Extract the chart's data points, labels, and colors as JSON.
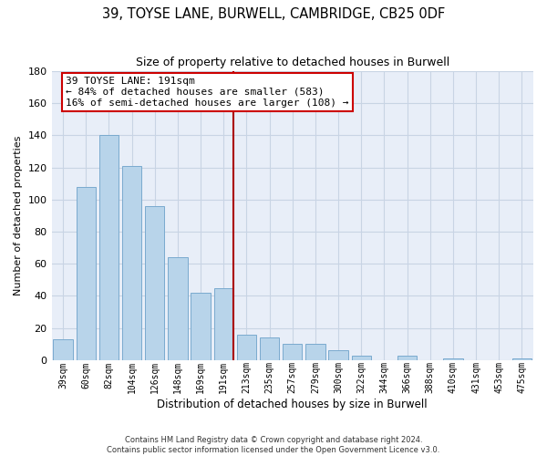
{
  "title": "39, TOYSE LANE, BURWELL, CAMBRIDGE, CB25 0DF",
  "subtitle": "Size of property relative to detached houses in Burwell",
  "xlabel": "Distribution of detached houses by size in Burwell",
  "ylabel": "Number of detached properties",
  "bar_labels": [
    "39sqm",
    "60sqm",
    "82sqm",
    "104sqm",
    "126sqm",
    "148sqm",
    "169sqm",
    "191sqm",
    "213sqm",
    "235sqm",
    "257sqm",
    "279sqm",
    "300sqm",
    "322sqm",
    "344sqm",
    "366sqm",
    "388sqm",
    "410sqm",
    "431sqm",
    "453sqm",
    "475sqm"
  ],
  "bar_values": [
    13,
    108,
    140,
    121,
    96,
    64,
    42,
    45,
    16,
    14,
    10,
    10,
    6,
    3,
    0,
    3,
    0,
    1,
    0,
    0,
    1
  ],
  "bar_color": "#b8d4ea",
  "bar_edge_color": "#7aaace",
  "reference_line_index": 7,
  "annotation_title": "39 TOYSE LANE: 191sqm",
  "annotation_line1": "← 84% of detached houses are smaller (583)",
  "annotation_line2": "16% of semi-detached houses are larger (108) →",
  "annotation_box_color": "#ffffff",
  "annotation_box_edge": "#cc0000",
  "reference_line_color": "#aa0000",
  "ylim": [
    0,
    180
  ],
  "yticks": [
    0,
    20,
    40,
    60,
    80,
    100,
    120,
    140,
    160,
    180
  ],
  "footer_line1": "Contains HM Land Registry data © Crown copyright and database right 2024.",
  "footer_line2": "Contains public sector information licensed under the Open Government Licence v3.0.",
  "bg_color": "#ffffff",
  "plot_bg_color": "#e8eef8",
  "grid_color": "#c8d4e4"
}
